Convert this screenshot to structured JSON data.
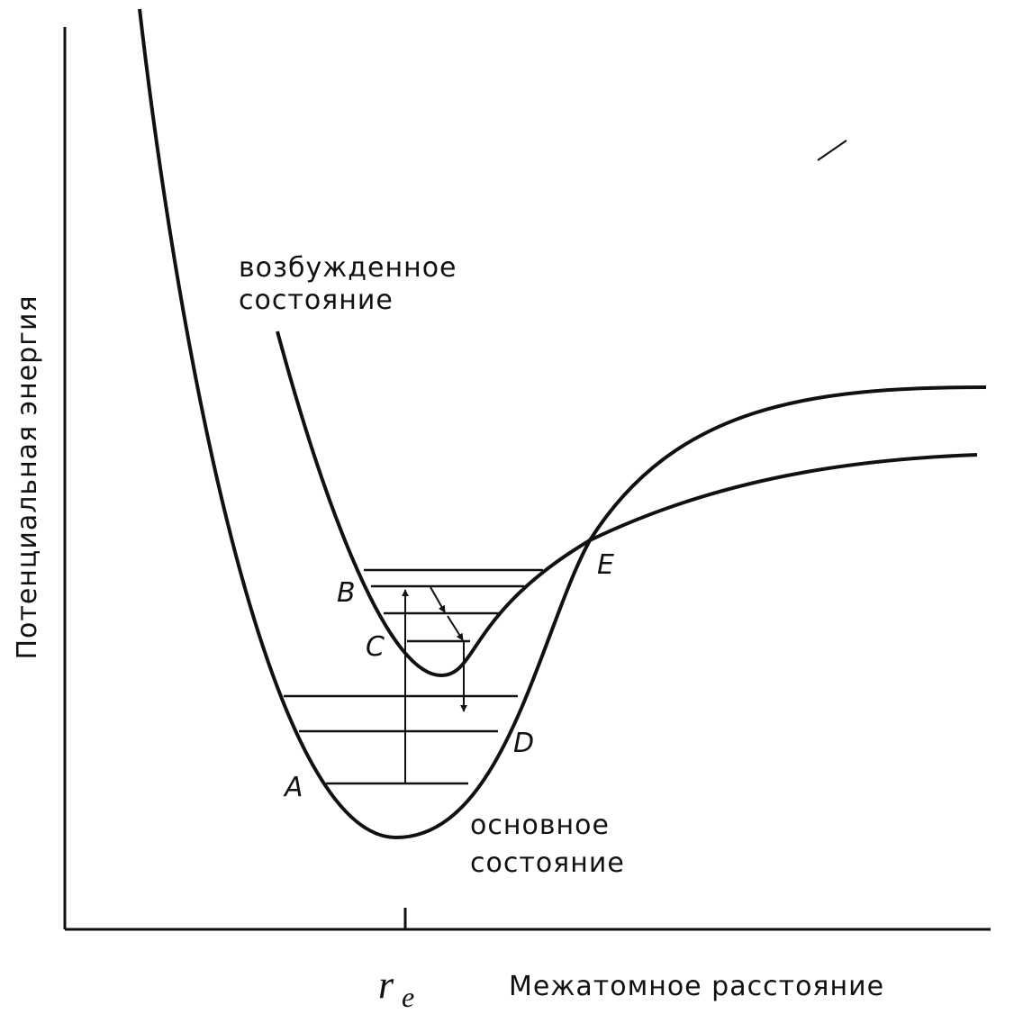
{
  "axes": {
    "y_label": "Потенциальная энергия",
    "x_label": "Межатомное расстояние",
    "x_marker": "r",
    "x_marker_sub": "e"
  },
  "curves": {
    "excited": {
      "label_line1": "возбужденное",
      "label_line2": "состояние"
    },
    "ground": {
      "label_line1": "основное",
      "label_line2": "состояние"
    }
  },
  "points": {
    "A": "A",
    "B": "B",
    "C": "C",
    "D": "D",
    "E": "E"
  }
}
